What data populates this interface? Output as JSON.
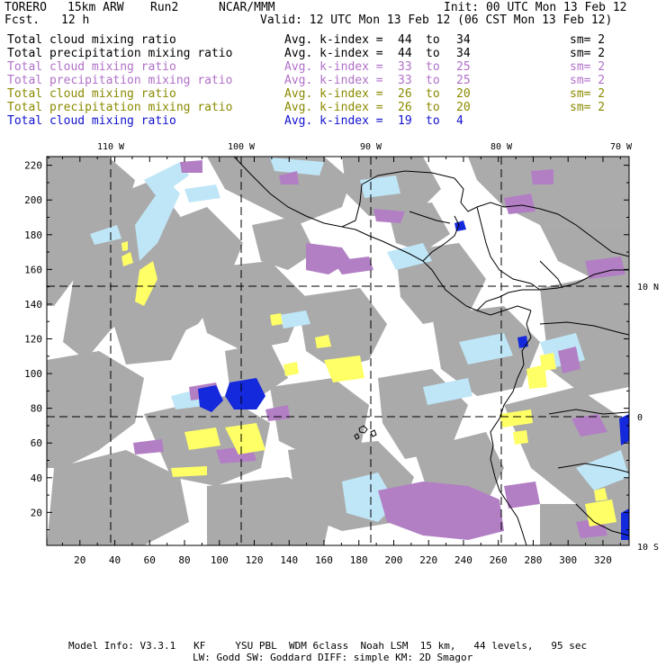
{
  "header": {
    "model": "TORERO",
    "resolution": "15km ARW",
    "run": "Run2",
    "org": "NCAR/MMM",
    "init": "Init: 00 UTC Mon 13 Feb 12",
    "fcst_label": "Fcst.",
    "fcst_value": "12 h",
    "valid": "Valid: 12 UTC Mon 13 Feb 12 (06 CST Mon 13 Feb 12)"
  },
  "legend": [
    {
      "field": "Total cloud mixing ratio",
      "label": "Avg. k-index =",
      "from": "44",
      "to_word": "to",
      "to": "34",
      "sm": "sm= 2",
      "color": "#000000"
    },
    {
      "field": "Total precipitation mixing ratio",
      "label": "Avg. k-index =",
      "from": "44",
      "to_word": "to",
      "to": "34",
      "sm": "sm= 2",
      "color": "#000000"
    },
    {
      "field": "Total cloud mixing ratio",
      "label": "Avg. k-index =",
      "from": "33",
      "to_word": "to",
      "to": "25",
      "sm": "sm= 2",
      "color": "#b070c8"
    },
    {
      "field": "Total precipitation mixing ratio",
      "label": "Avg. k-index =",
      "from": "33",
      "to_word": "to",
      "to": "25",
      "sm": "sm= 2",
      "color": "#b070c8"
    },
    {
      "field": "Total cloud mixing ratio",
      "label": "Avg. k-index =",
      "from": "26",
      "to_word": "to",
      "to": "20",
      "sm": "sm= 2",
      "color": "#8a8a00"
    },
    {
      "field": "Total precipitation mixing ratio",
      "label": "Avg. k-index =",
      "from": "26",
      "to_word": "to",
      "to": "20",
      "sm": "sm= 2",
      "color": "#8a8a00"
    },
    {
      "field": "Total cloud mixing ratio",
      "label": "Avg. k-index =",
      "from": "19",
      "to_word": "to",
      "to": "4",
      "sm": "",
      "color": "#1010d0"
    }
  ],
  "axes": {
    "lon_labels": [
      "110 W",
      "100 W",
      "90 W",
      "80 W",
      "70 W"
    ],
    "lat_labels": [
      "10 N",
      "0",
      "10 S"
    ],
    "x_ticks": [
      "20",
      "40",
      "60",
      "80",
      "100",
      "120",
      "140",
      "160",
      "180",
      "200",
      "220",
      "240",
      "260",
      "280",
      "300",
      "320"
    ],
    "y_ticks": [
      "20",
      "40",
      "60",
      "80",
      "100",
      "120",
      "140",
      "160",
      "180",
      "200",
      "220"
    ],
    "x_range": [
      1,
      335
    ],
    "y_range": [
      1,
      225
    ]
  },
  "colors": {
    "gray_cloud": "#a6a6a6",
    "light_blue": "#bfe6f7",
    "purple": "#b27fc4",
    "yellow": "#ffff66",
    "deep_blue": "#1428dc"
  },
  "footer": {
    "line1": "Model Info: V3.3.1   KF     YSU PBL  WDM 6class  Noah LSM  15 km,   44 levels,   95 sec",
    "line2": "LW: Godd SW: Goddard DIFF: simple KM: 2D Smagor"
  }
}
